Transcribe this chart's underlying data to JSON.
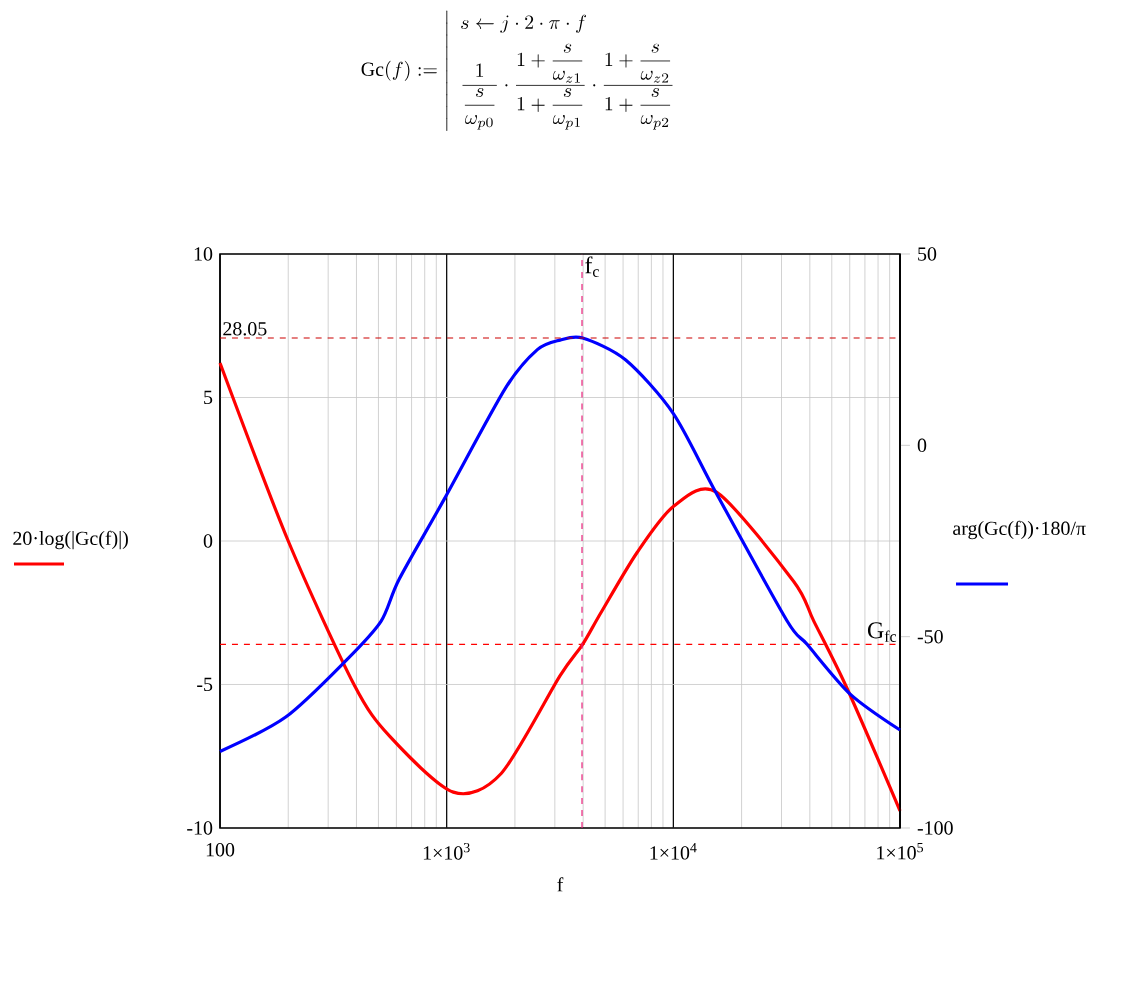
{
  "chart_data": {
    "type": "line",
    "annotations": [
      "\\mathrm{Gc}(f) := \\left|\\begin{array}{l} s \\leftarrow j\\cdot 2\\cdot \\pi\\cdot f\\\\[4pt] \\dfrac{1}{\\dfrac{s}{\\omega_{p0}}}\\cdot\\dfrac{1+\\dfrac{s}{\\omega_{z1}}}{1+\\dfrac{s}{\\omega_{p1}}}\\cdot\\dfrac{1+\\dfrac{s}{\\omega_{z2}}}{1+\\dfrac{s}{\\omega_{p2}}}\\end{array}\\right."
    ],
    "xlabel": "f",
    "ylabel": "20·log(|Gc(f)|)",
    "y2label": "arg(Gc(f))·180/π",
    "log": "x",
    "grid": true,
    "marker": "none",
    "line_style": "solid",
    "xlim": [
      100,
      100000
    ],
    "xticks": [
      100,
      {
        "value": 1000,
        "label": "1×10$^{3}$"
      },
      {
        "value": 10000,
        "label": "1×10$^{4}$"
      },
      {
        "value": 100000,
        "label": "1×10$^{5}$"
      }
    ],
    "ylim": [
      -10,
      10
    ],
    "yticks": [
      -10,
      -5,
      0,
      5,
      10
    ],
    "y2lim": [
      -100,
      50
    ],
    "y2ticks": [
      -100,
      -50,
      0,
      50
    ],
    "series": [
      {
        "color": "#ff0000",
        "axis": "y",
        "x": [
          100,
          200,
          390,
          560,
          1070,
          1740,
          3160,
          3980,
          4790,
          6920,
          10000,
          15500,
          33900,
          41700,
          58900,
          100000
        ],
        "values": [
          6.2,
          0,
          -5,
          -6.8,
          -8.75,
          -8.1,
          -4.7,
          -3.6,
          -2.5,
          -0.4,
          1.2,
          1.7,
          -1.4,
          -2.8,
          -5.2,
          -9.4
        ]
      },
      {
        "color": "#0000ff",
        "axis": "y2",
        "x": [
          100,
          195,
          363,
          513,
          617,
          977,
          1820,
          2512,
          3162,
          3981,
          6166,
          10000,
          15490,
          31620,
          38900,
          60260,
          100000
        ],
        "values": [
          -80,
          -71,
          -56,
          -46,
          -35,
          -14,
          15,
          25,
          27.5,
          28.05,
          22.3,
          8.3,
          -12.6,
          -45.7,
          -52,
          -65,
          -74.4
        ]
      }
    ],
    "ref_lines": [
      {
        "axis": "y2",
        "value": 28.05,
        "label": "28.05",
        "color": "#cc0000",
        "line_style": "dashed"
      },
      {
        "axis": "y",
        "value": -3.6,
        "label": "G$_{fc}$",
        "color": "#ff0000",
        "line_style": "dashed"
      },
      {
        "axis": "x",
        "value": 3955,
        "label": "f$_{c}$",
        "color": "#e8207a",
        "line_style": "dashed"
      }
    ]
  }
}
